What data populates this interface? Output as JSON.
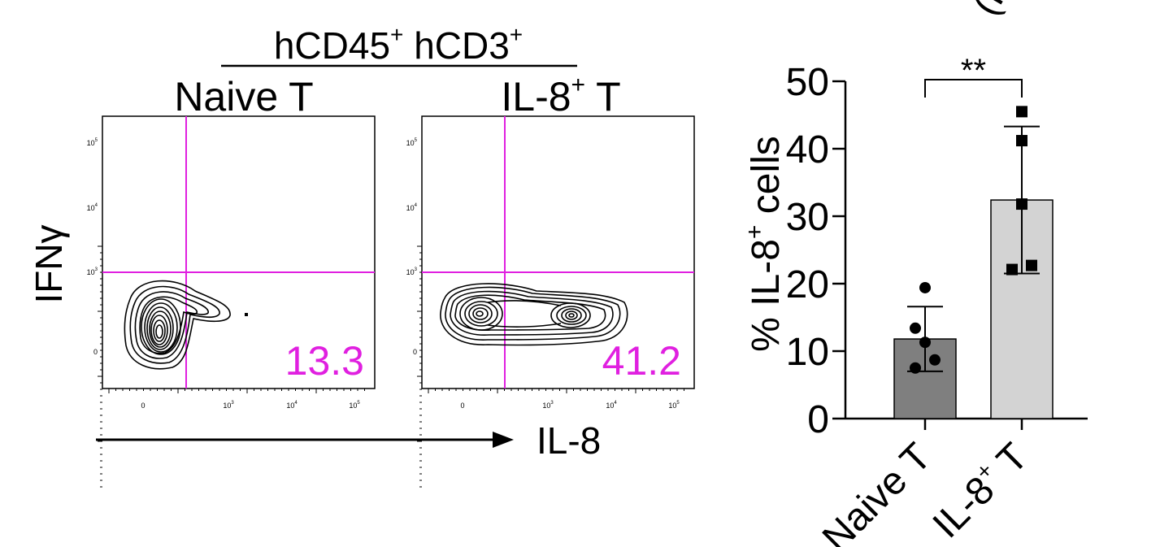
{
  "figure": {
    "group_label": "hCD45",
    "group_label_sup": "+",
    "group_label_2": "hCD3",
    "group_label_2_sup": "+",
    "x_arrow_label": "IL-8",
    "corner_fragment": "(K"
  },
  "flow_panels": [
    {
      "title": "Naive T",
      "title_sup": "",
      "quadrant_value": "13.3",
      "y_axis_label": "IFNγ",
      "y_ticks": [
        {
          "base": "10",
          "exp": "5"
        },
        {
          "base": "10",
          "exp": "4"
        },
        {
          "base": "10",
          "exp": "3"
        },
        {
          "base": "0",
          "exp": ""
        }
      ],
      "x_ticks": [
        {
          "base": "0",
          "exp": ""
        },
        {
          "base": "10",
          "exp": "3"
        },
        {
          "base": "10",
          "exp": "4"
        },
        {
          "base": "10",
          "exp": "5"
        }
      ]
    },
    {
      "title": "IL-8",
      "title_sup": "+",
      "title_suffix": "T",
      "quadrant_value": "41.2",
      "y_ticks": [
        {
          "base": "10",
          "exp": "5"
        },
        {
          "base": "10",
          "exp": "4"
        },
        {
          "base": "10",
          "exp": "3"
        },
        {
          "base": "0",
          "exp": ""
        }
      ],
      "x_ticks": [
        {
          "base": "0",
          "exp": ""
        },
        {
          "base": "10",
          "exp": "3"
        },
        {
          "base": "10",
          "exp": "4"
        },
        {
          "base": "10",
          "exp": "5"
        }
      ]
    }
  ],
  "chart_data": {
    "type": "bar",
    "ylabel": "% IL-8",
    "ylabel_sup": "+",
    "ylabel_suffix": "cells",
    "ylim": [
      0,
      50
    ],
    "y_ticks": [
      0,
      10,
      20,
      30,
      40,
      50
    ],
    "categories": [
      "Naive T",
      "IL-8+ T"
    ],
    "category_labels": [
      {
        "text": "Naive T",
        "sup": ""
      },
      {
        "text": "IL-8",
        "sup": "+",
        "suffix": "T"
      }
    ],
    "means": [
      11.8,
      32.4
    ],
    "sd": [
      4.8,
      10.9
    ],
    "bar_colors": [
      "#7f7f7f",
      "#d3d3d3"
    ],
    "points": [
      [
        19.4,
        13.4,
        11.3,
        8.7,
        7.5
      ],
      [
        45.5,
        41.2,
        31.8,
        22.7,
        22.1
      ]
    ],
    "point_markers": [
      "circle",
      "square"
    ],
    "significance": "**"
  }
}
